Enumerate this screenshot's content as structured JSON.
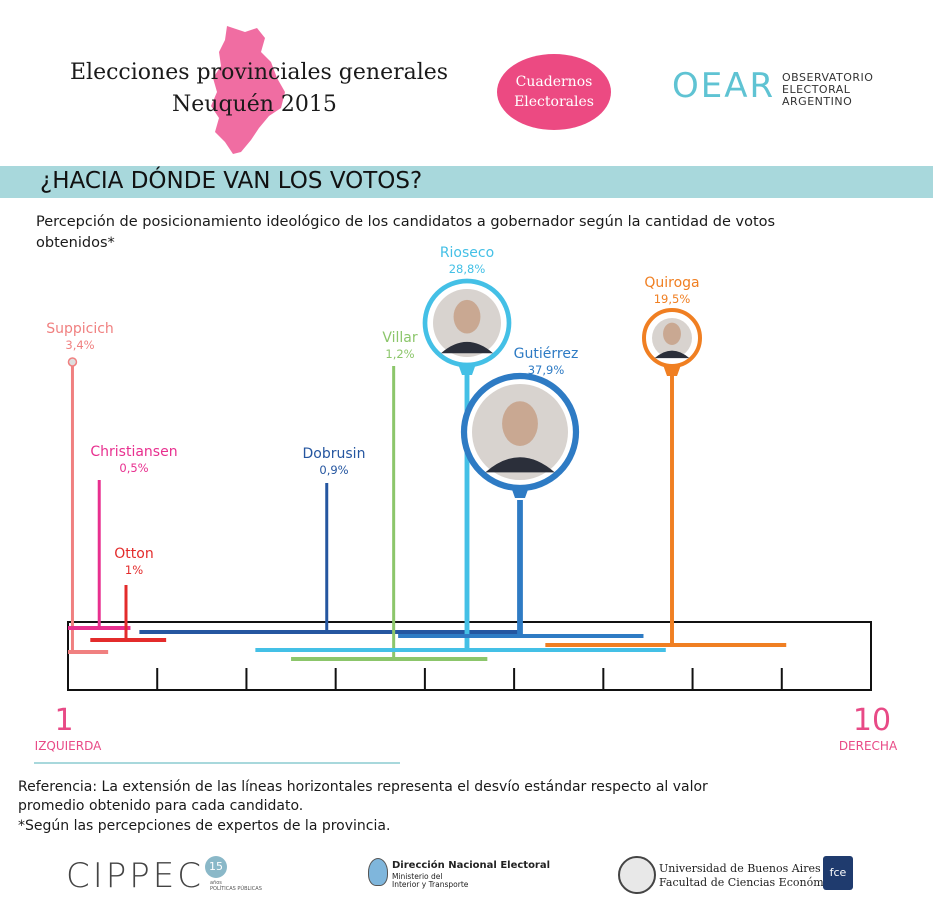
{
  "header": {
    "title_line1": "Elecciones provinciales generales",
    "title_line2": "Neuquén 2015",
    "badge_line1": "Cuadernos",
    "badge_line2": "Electorales",
    "oear_logo": "OEAR",
    "oear_line1": "OBSERVATORIO",
    "oear_line2": "ELECTORAL",
    "oear_line3": "ARGENTINO",
    "map_color": "#ee5d98"
  },
  "section": {
    "title": "¿HACIA DÓNDE VAN LOS VOTOS?",
    "subtitle": "Percepción de posicionamiento ideológico de los candidatos a gobernador según la cantidad de votos obtenidos*"
  },
  "chart_data": {
    "type": "scatter",
    "x_axis": {
      "min": 1,
      "max": 10,
      "left_label": "1",
      "left_caption": "IZQUIERDA",
      "right_label": "10",
      "right_caption": "DERECHA"
    },
    "candidates": [
      {
        "name": "Suppicich",
        "votes": "3,4%",
        "votes_value": 3.4,
        "position": 1.05,
        "sd_low": 1.0,
        "sd_high": 1.45,
        "color": "#f08080"
      },
      {
        "name": "Christiansen",
        "votes": "0,5%",
        "votes_value": 0.5,
        "position": 1.35,
        "sd_low": 1.0,
        "sd_high": 1.7,
        "color": "#e8308f"
      },
      {
        "name": "Otton",
        "votes": "1%",
        "votes_value": 1.0,
        "position": 1.65,
        "sd_low": 1.25,
        "sd_high": 2.1,
        "color": "#e32b2b"
      },
      {
        "name": "Dobrusin",
        "votes": "0,9%",
        "votes_value": 0.9,
        "position": 3.9,
        "sd_low": 1.8,
        "sd_high": 6.05,
        "color": "#2556a0"
      },
      {
        "name": "Villar",
        "votes": "1,2%",
        "votes_value": 1.2,
        "position": 4.65,
        "sd_low": 3.5,
        "sd_high": 5.7,
        "color": "#8cc66b"
      },
      {
        "name": "Rioseco",
        "votes": "28,8%",
        "votes_value": 28.8,
        "position": 5.5,
        "sd_low": 3.1,
        "sd_high": 7.7,
        "color": "#44c0e6"
      },
      {
        "name": "Gutiérrez",
        "votes": "37,9%",
        "votes_value": 37.9,
        "position": 6.05,
        "sd_low": 4.7,
        "sd_high": 7.45,
        "color": "#2e7bc4"
      },
      {
        "name": "Quiroga",
        "votes": "19,5%",
        "votes_value": 19.5,
        "position": 7.7,
        "sd_low": 6.35,
        "sd_high": 9.05,
        "color": "#f07f22"
      }
    ]
  },
  "footer": {
    "reference": "Referencia:  La extensión de las líneas horizontales representa el desvío estándar respecto al valor promedio obtenido para cada candidato.",
    "note": "*Según las percepciones de expertos de la provincia.",
    "cippec": "CIPPEC",
    "cippec_badge": "15",
    "cippec_sub": "años",
    "cippec_sub2": "POLÍTICAS PÚBLICAS",
    "dne_title": "Dirección Nacional Electoral",
    "dne_sub1": "Ministerio del",
    "dne_sub2": "Interior y Transporte",
    "uba_title": "Universidad de Buenos Aires",
    "uba_sub": "Facultad de Ciencias Económicas",
    "fce": "fce"
  }
}
